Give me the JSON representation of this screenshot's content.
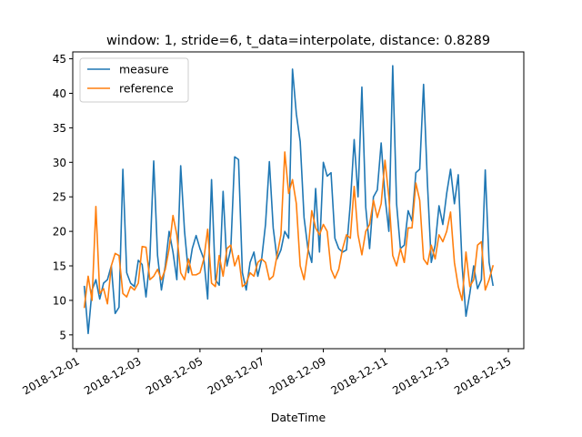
{
  "chart_data": {
    "type": "line",
    "title": "window: 1, stride=6, t_data=interpolate, distance: 0.8289",
    "xlabel": "DateTime",
    "ylabel": "",
    "x_start": "2018-12-01T06:00",
    "x_step_hours": 3,
    "xlim": [
      "2018-12-00T21:00",
      "2018-12-15T12:00"
    ],
    "ylim": [
      3.0,
      46.0
    ],
    "x_ticks": [
      "2018-12-01",
      "2018-12-03",
      "2018-12-05",
      "2018-12-07",
      "2018-12-09",
      "2018-12-11",
      "2018-12-13",
      "2018-12-15"
    ],
    "y_ticks": [
      5,
      10,
      15,
      20,
      25,
      30,
      35,
      40,
      45
    ],
    "grid": false,
    "legend_position": "top-left",
    "series": [
      {
        "name": "measure",
        "color": "#1f77b4",
        "values": [
          12.0,
          5.2,
          11.5,
          13.0,
          10.2,
          12.5,
          13.0,
          15.0,
          8.1,
          9.0,
          29.0,
          14.0,
          12.5,
          12.0,
          15.8,
          15.2,
          10.5,
          16.0,
          30.2,
          16.5,
          11.5,
          15.0,
          20.0,
          17.0,
          13.0,
          29.5,
          20.0,
          14.0,
          17.5,
          19.4,
          17.5,
          16.0,
          10.2,
          27.5,
          13.0,
          12.2,
          25.8,
          15.0,
          17.5,
          30.8,
          30.4,
          14.0,
          11.5,
          15.5,
          17.0,
          13.5,
          16.0,
          21.0,
          30.1,
          20.5,
          16.0,
          17.3,
          20.0,
          19.0,
          43.5,
          37.0,
          33.0,
          22.0,
          17.5,
          15.5,
          26.2,
          17.0,
          30.0,
          28.0,
          28.5,
          19.0,
          17.5,
          17.0,
          17.3,
          24.0,
          33.3,
          25.0,
          40.9,
          23.5,
          17.5,
          25.0,
          26.0,
          32.8,
          25.0,
          20.0,
          44.0,
          24.0,
          17.5,
          18.0,
          23.0,
          21.5,
          28.5,
          29.0,
          41.3,
          27.0,
          15.5,
          18.0,
          23.7,
          21.0,
          25.5,
          29.0,
          24.0,
          28.2,
          15.0,
          7.7,
          11.0,
          15.0,
          11.7,
          13.0,
          28.9,
          15.5,
          12.2
        ]
      },
      {
        "name": "reference",
        "color": "#ff7f0e",
        "values": [
          9.0,
          13.5,
          10.0,
          23.6,
          11.0,
          11.7,
          9.5,
          15.0,
          16.8,
          16.5,
          11.0,
          10.5,
          12.0,
          11.5,
          12.5,
          17.8,
          17.7,
          13.0,
          13.5,
          14.5,
          13.0,
          14.5,
          17.5,
          22.3,
          19.5,
          14.0,
          13.0,
          16.0,
          13.7,
          13.7,
          14.0,
          16.0,
          20.3,
          12.5,
          12.0,
          16.5,
          13.5,
          17.5,
          18.0,
          15.0,
          16.5,
          12.0,
          12.5,
          14.0,
          13.5,
          15.5,
          16.0,
          15.5,
          13.0,
          13.5,
          16.5,
          19.5,
          31.5,
          25.5,
          27.5,
          24.0,
          15.0,
          13.0,
          17.0,
          23.0,
          20.5,
          19.5,
          21.0,
          20.0,
          14.5,
          13.2,
          14.5,
          17.5,
          19.5,
          19.0,
          26.5,
          19.5,
          16.6,
          20.0,
          21.0,
          24.5,
          22.0,
          24.0,
          30.3,
          25.0,
          16.5,
          15.0,
          17.5,
          15.5,
          20.5,
          20.5,
          27.0,
          24.5,
          16.0,
          15.2,
          18.0,
          16.0,
          19.5,
          18.5,
          20.0,
          22.8,
          15.5,
          12.0,
          10.0,
          17.0,
          12.0,
          13.0,
          18.0,
          18.5,
          11.5,
          13.0,
          15.0
        ]
      }
    ]
  }
}
